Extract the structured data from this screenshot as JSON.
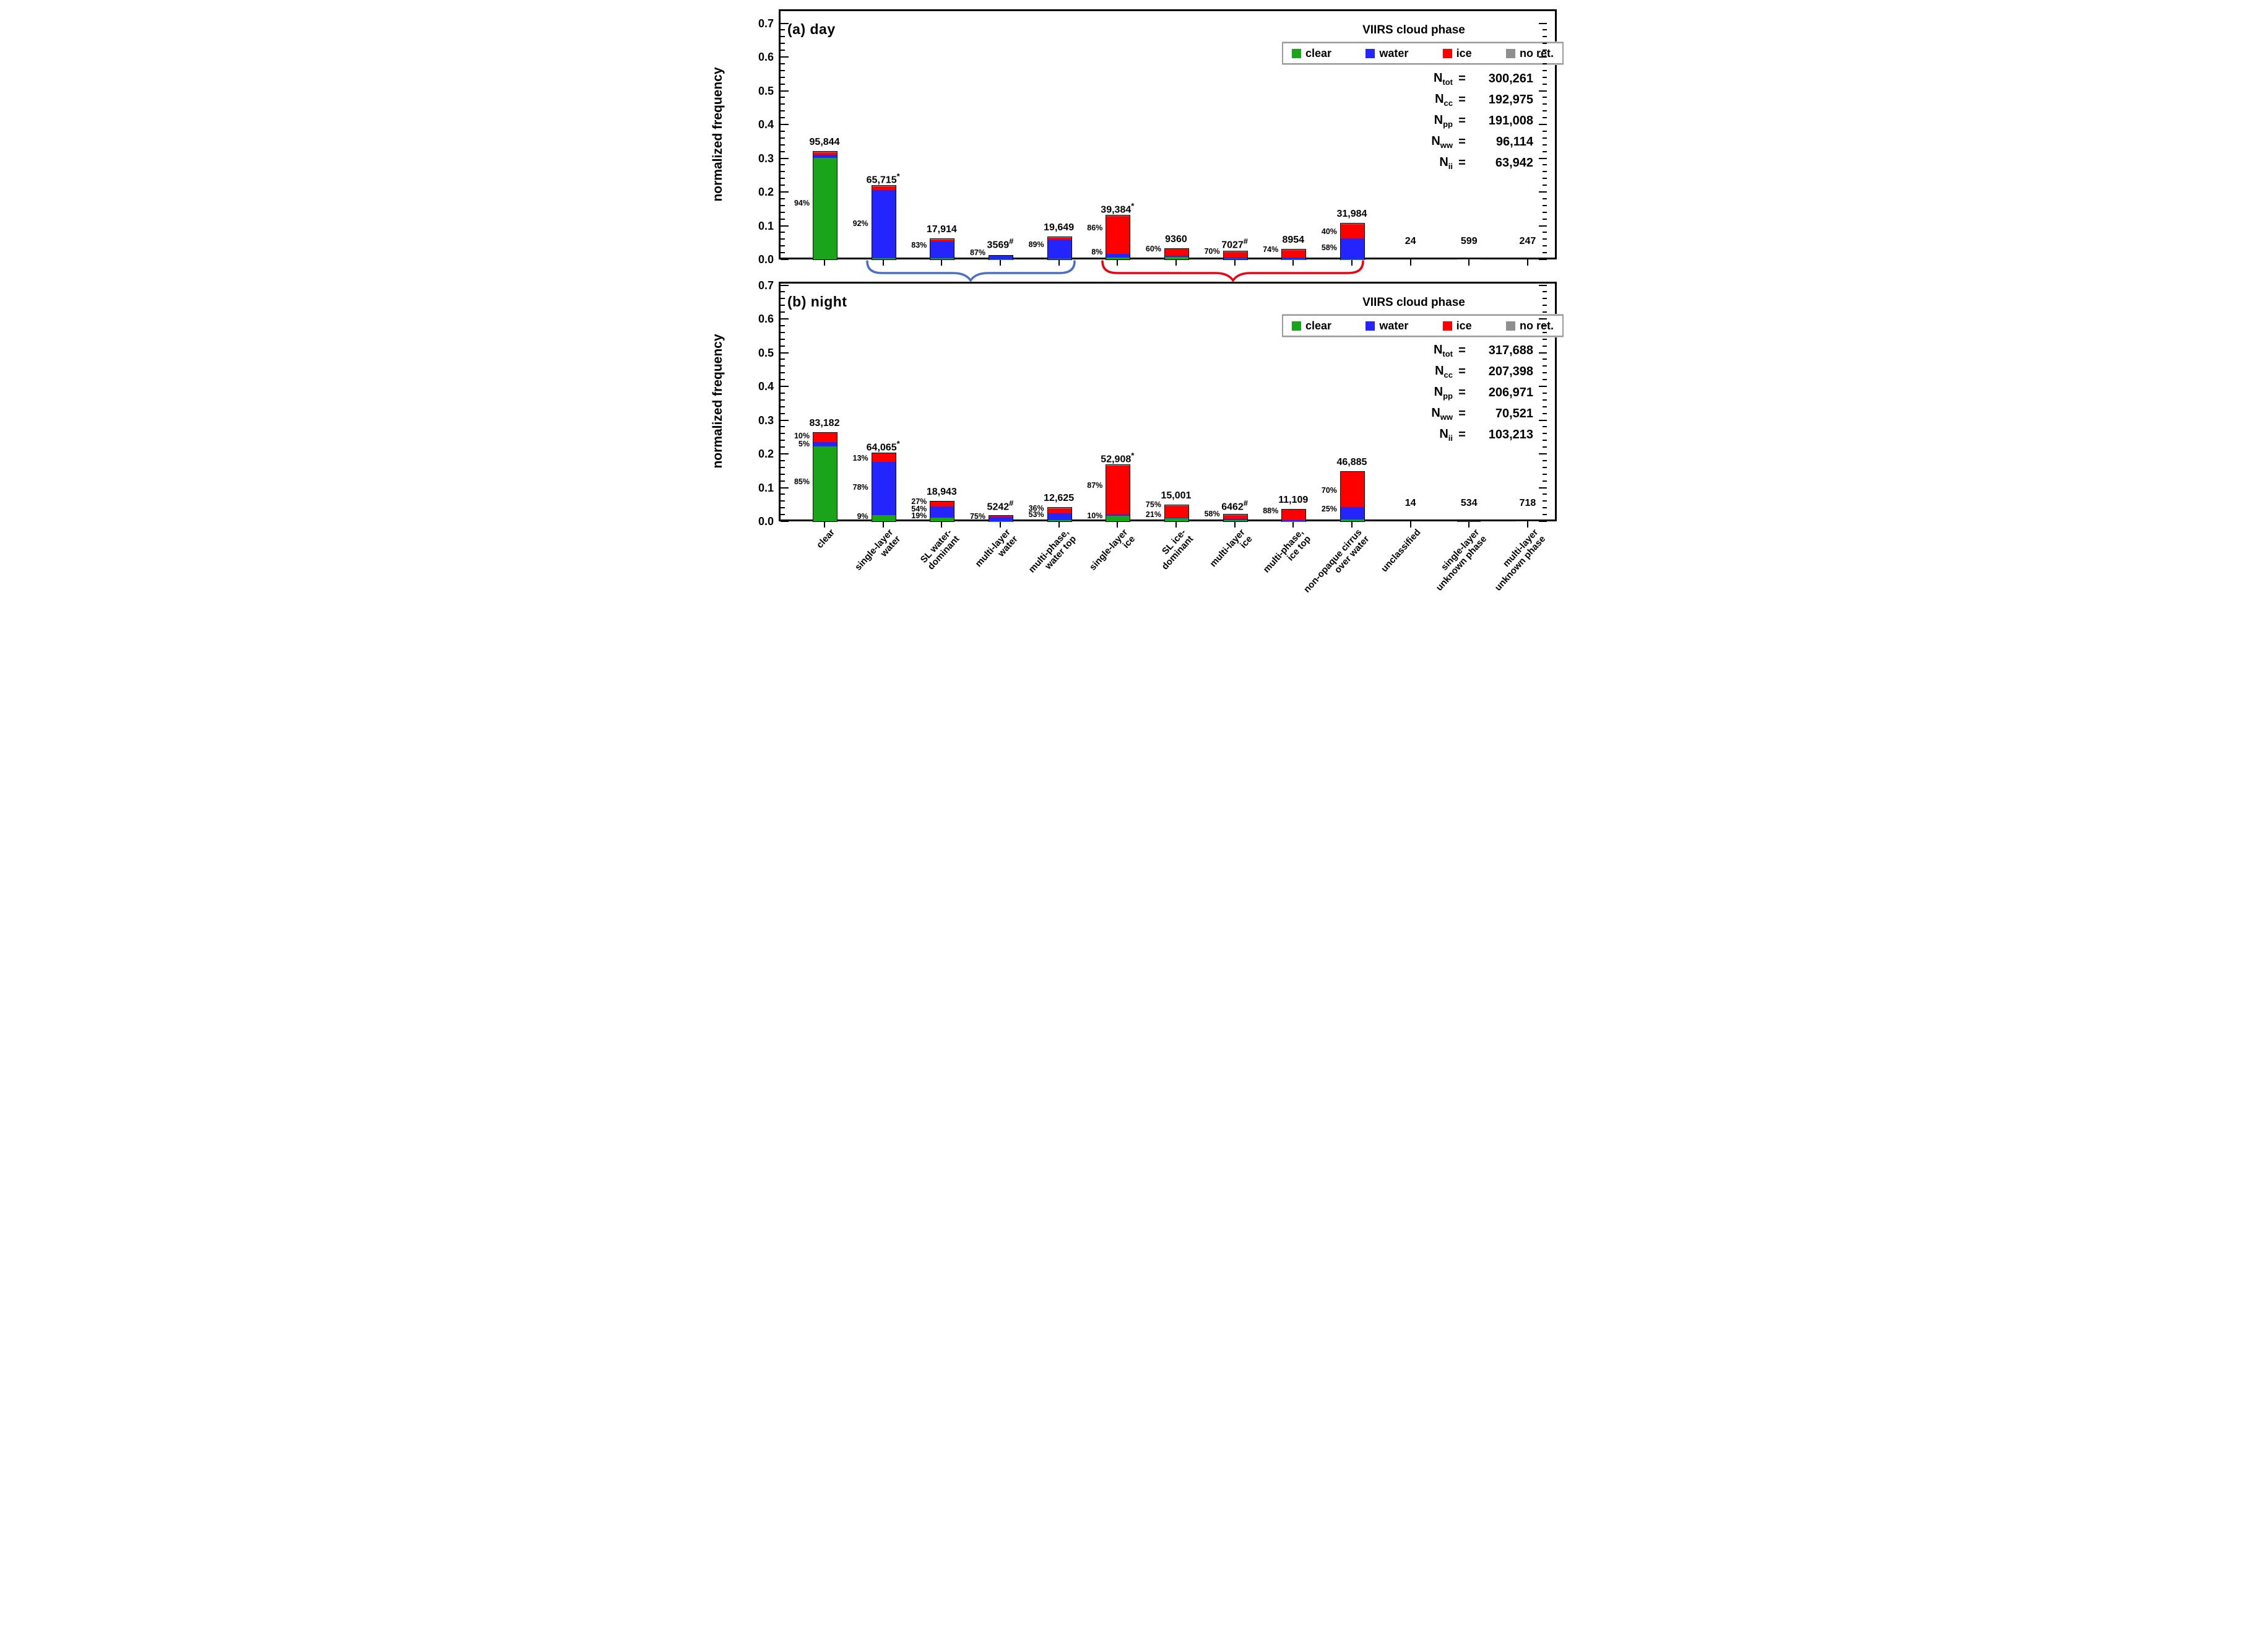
{
  "figure": {
    "y_axis_label": "normalized frequency",
    "y_tick_labels": [
      "0.0",
      "0.1",
      "0.2",
      "0.3",
      "0.4",
      "0.5",
      "0.6",
      "0.7"
    ],
    "colors": {
      "clear": "#1aa41a",
      "water": "#2424ff",
      "ice": "#ff0000",
      "no_ret": "#8f8f8f",
      "tiny_bar": "#333333",
      "brace_water": "#4a6fc8",
      "brace_ice": "#ee0011"
    },
    "legend": {
      "title": "VIIRS cloud phase",
      "entries": [
        {
          "key": "clear",
          "label": "clear"
        },
        {
          "key": "water",
          "label": "water"
        },
        {
          "key": "ice",
          "label": "ice"
        },
        {
          "key": "no_ret",
          "label": "no ret."
        }
      ]
    },
    "annotations": {
      "water_brace": {
        "color_key": "brace_water",
        "spans": "single-layer water through multi-phase, water top"
      },
      "ice_brace": {
        "color_key": "brace_ice",
        "spans": "single-layer ice through non-opaque cirrus over water"
      }
    }
  },
  "chart_data": [
    {
      "type": "bar",
      "stacked": true,
      "panel_label": "(a) day",
      "ylabel": "normalized frequency",
      "ylim": [
        0,
        0.7
      ],
      "ytick_step": 0.1,
      "yminor_step": 0.02,
      "grid": false,
      "legend_position": "top-right",
      "n_tot": 300261,
      "n_stats": [
        {
          "name": "N",
          "sub": "tot",
          "value": "300,261"
        },
        {
          "name": "N",
          "sub": "cc",
          "value": "192,975"
        },
        {
          "name": "N",
          "sub": "pp",
          "value": "191,008"
        },
        {
          "name": "N",
          "sub": "ww",
          "value": "96,114"
        },
        {
          "name": "N",
          "sub": "ii",
          "value": "63,942"
        }
      ],
      "categories": [
        {
          "label": "clear",
          "count": 95844,
          "count_label": "95,844",
          "suffix": "",
          "segments": {
            "clear": 0.94,
            "water": 0.03,
            "ice": 0.025,
            "no_ret": 0.005
          },
          "pct_labels": [
            {
              "text": "94%",
              "y": 0.165
            }
          ]
        },
        {
          "label": "single-layer\nwater",
          "count": 65715,
          "count_label": "65,715",
          "suffix": "*",
          "segments": {
            "clear": 0.015,
            "water": 0.92,
            "ice": 0.055,
            "no_ret": 0.01
          },
          "pct_labels": [
            {
              "text": "92%",
              "y": 0.105
            }
          ]
        },
        {
          "label": "SL water-\ndominant",
          "count": 17914,
          "count_label": "17,914",
          "suffix": "",
          "segments": {
            "clear": 0.06,
            "water": 0.83,
            "ice": 0.1,
            "no_ret": 0.01
          },
          "pct_labels": [
            {
              "text": "83%",
              "y": 0.04
            }
          ]
        },
        {
          "label": "multi-layer\nwater",
          "count": 3569,
          "count_label": "3569",
          "suffix": "#",
          "segments": {
            "clear": 0.02,
            "water": 0.87,
            "ice": 0.1,
            "no_ret": 0.01
          },
          "pct_labels": [
            {
              "text": "87%",
              "y": 0.018
            }
          ]
        },
        {
          "label": "multi-phase,\nwater top",
          "count": 19649,
          "count_label": "19,649",
          "suffix": "",
          "segments": {
            "clear": 0.02,
            "water": 0.89,
            "ice": 0.08,
            "no_ret": 0.01
          },
          "pct_labels": [
            {
              "text": "89%",
              "y": 0.042
            }
          ]
        },
        {
          "label": "single-layer\nice",
          "count": 39384,
          "count_label": "39,384",
          "suffix": "*",
          "segments": {
            "clear": 0.04,
            "water": 0.08,
            "ice": 0.86,
            "no_ret": 0.02
          },
          "pct_labels": [
            {
              "text": "86%",
              "y": 0.092
            },
            {
              "text": "8%",
              "y": 0.02
            }
          ]
        },
        {
          "label": "SL ice-\ndominant",
          "count": 9360,
          "count_label": "9360",
          "suffix": "",
          "segments": {
            "clear": 0.22,
            "water": 0.16,
            "ice": 0.6,
            "no_ret": 0.02
          },
          "pct_labels": [
            {
              "text": "60%",
              "y": 0.03
            }
          ]
        },
        {
          "label": "multi-layer\nice",
          "count": 7027,
          "count_label": "7027",
          "suffix": "#",
          "segments": {
            "clear": 0.1,
            "water": 0.12,
            "ice": 0.7,
            "no_ret": 0.08
          },
          "pct_labels": [
            {
              "text": "70%",
              "y": 0.022
            }
          ]
        },
        {
          "label": "multi-phase,\nice top",
          "count": 8954,
          "count_label": "8954",
          "suffix": "",
          "segments": {
            "clear": 0.02,
            "water": 0.19,
            "ice": 0.74,
            "no_ret": 0.05
          },
          "pct_labels": [
            {
              "text": "74%",
              "y": 0.028
            }
          ]
        },
        {
          "label": "non-opaque cirrus\nover water",
          "count": 31984,
          "count_label": "31,984",
          "suffix": "",
          "segments": {
            "clear": 0.005,
            "water": 0.58,
            "ice": 0.4,
            "no_ret": 0.015
          },
          "pct_labels": [
            {
              "text": "40%",
              "y": 0.08
            },
            {
              "text": "58%",
              "y": 0.033
            }
          ]
        },
        {
          "label": "unclassified",
          "count": 24,
          "count_label": "24",
          "suffix": "",
          "segments": {
            "clear": 0,
            "water": 0,
            "ice": 0,
            "no_ret": 1
          },
          "pct_labels": []
        },
        {
          "label": "single-layer\nunknown phase",
          "count": 599,
          "count_label": "599",
          "suffix": "",
          "segments": {
            "clear": 0,
            "water": 0,
            "ice": 0,
            "no_ret": 1
          },
          "pct_labels": []
        },
        {
          "label": "multi-layer\nunknown phase",
          "count": 247,
          "count_label": "247",
          "suffix": "",
          "segments": {
            "clear": 0,
            "water": 0,
            "ice": 0,
            "no_ret": 1
          },
          "pct_labels": []
        }
      ]
    },
    {
      "type": "bar",
      "stacked": true,
      "panel_label": "(b) night",
      "ylabel": "normalized frequency",
      "ylim": [
        0,
        0.7
      ],
      "ytick_step": 0.1,
      "yminor_step": 0.02,
      "grid": false,
      "legend_position": "top-right",
      "n_tot": 317688,
      "n_stats": [
        {
          "name": "N",
          "sub": "tot",
          "value": "317,688"
        },
        {
          "name": "N",
          "sub": "cc",
          "value": "207,398"
        },
        {
          "name": "N",
          "sub": "pp",
          "value": "206,971"
        },
        {
          "name": "N",
          "sub": "ww",
          "value": "70,521"
        },
        {
          "name": "N",
          "sub": "ii",
          "value": "103,213"
        }
      ],
      "categories": [
        {
          "label": "clear",
          "count": 83182,
          "count_label": "83,182",
          "suffix": "",
          "segments": {
            "clear": 0.85,
            "water": 0.05,
            "ice": 0.1,
            "no_ret": 0
          },
          "pct_labels": [
            {
              "text": "10%",
              "y": 0.252
            },
            {
              "text": "5%",
              "y": 0.228
            },
            {
              "text": "85%",
              "y": 0.115
            }
          ]
        },
        {
          "label": "single-layer\nwater",
          "count": 64065,
          "count_label": "64,065",
          "suffix": "*",
          "segments": {
            "clear": 0.09,
            "water": 0.78,
            "ice": 0.13,
            "no_ret": 0
          },
          "pct_labels": [
            {
              "text": "13%",
              "y": 0.185
            },
            {
              "text": "78%",
              "y": 0.1
            },
            {
              "text": "9%",
              "y": 0.012
            }
          ]
        },
        {
          "label": "SL water-\ndominant",
          "count": 18943,
          "count_label": "18,943",
          "suffix": "",
          "segments": {
            "clear": 0.19,
            "water": 0.54,
            "ice": 0.27,
            "no_ret": 0
          },
          "pct_labels": [
            {
              "text": "27%",
              "y": 0.056
            },
            {
              "text": "54%",
              "y": 0.035
            },
            {
              "text": "19%",
              "y": 0.014
            }
          ]
        },
        {
          "label": "multi-layer\nwater",
          "count": 5242,
          "count_label": "5242",
          "suffix": "#",
          "segments": {
            "clear": 0.04,
            "water": 0.75,
            "ice": 0.2,
            "no_ret": 0.01
          },
          "pct_labels": [
            {
              "text": "75%",
              "y": 0.013
            }
          ]
        },
        {
          "label": "multi-phase,\nwater top",
          "count": 12625,
          "count_label": "12,625",
          "suffix": "",
          "segments": {
            "clear": 0.08,
            "water": 0.53,
            "ice": 0.36,
            "no_ret": 0.03
          },
          "pct_labels": [
            {
              "text": "36%",
              "y": 0.036
            },
            {
              "text": "53%",
              "y": 0.019
            }
          ]
        },
        {
          "label": "single-layer\nice",
          "count": 52908,
          "count_label": "52,908",
          "suffix": "*",
          "segments": {
            "clear": 0.1,
            "water": 0.02,
            "ice": 0.87,
            "no_ret": 0.01
          },
          "pct_labels": [
            {
              "text": "87%",
              "y": 0.105
            },
            {
              "text": "10%",
              "y": 0.014
            }
          ]
        },
        {
          "label": "SL ice-\ndominant",
          "count": 15001,
          "count_label": "15,001",
          "suffix": "",
          "segments": {
            "clear": 0.21,
            "water": 0.02,
            "ice": 0.75,
            "no_ret": 0.02
          },
          "pct_labels": [
            {
              "text": "75%",
              "y": 0.047
            },
            {
              "text": "21%",
              "y": 0.018
            }
          ]
        },
        {
          "label": "multi-layer\nice",
          "count": 6462,
          "count_label": "6462",
          "suffix": "#",
          "segments": {
            "clear": 0.22,
            "water": 0.12,
            "ice": 0.58,
            "no_ret": 0.08
          },
          "pct_labels": [
            {
              "text": "58%",
              "y": 0.021
            }
          ]
        },
        {
          "label": "multi-phase,\nice top",
          "count": 11109,
          "count_label": "11,109",
          "suffix": "",
          "segments": {
            "clear": 0.02,
            "water": 0.08,
            "ice": 0.88,
            "no_ret": 0.02
          },
          "pct_labels": [
            {
              "text": "88%",
              "y": 0.03
            }
          ]
        },
        {
          "label": "non-opaque cirrus\nover water",
          "count": 46885,
          "count_label": "46,885",
          "suffix": "",
          "segments": {
            "clear": 0.04,
            "water": 0.25,
            "ice": 0.7,
            "no_ret": 0.01
          },
          "pct_labels": [
            {
              "text": "70%",
              "y": 0.09
            },
            {
              "text": "25%",
              "y": 0.035
            }
          ]
        },
        {
          "label": "unclassified",
          "count": 14,
          "count_label": "14",
          "suffix": "",
          "segments": {
            "clear": 0,
            "water": 0,
            "ice": 0,
            "no_ret": 1
          },
          "pct_labels": []
        },
        {
          "label": "single-layer\nunknown phase",
          "count": 534,
          "count_label": "534",
          "suffix": "",
          "segments": {
            "clear": 0,
            "water": 0,
            "ice": 0,
            "no_ret": 1
          },
          "pct_labels": []
        },
        {
          "label": "multi-layer\nunknown phase",
          "count": 718,
          "count_label": "718",
          "suffix": "",
          "segments": {
            "clear": 0,
            "water": 0,
            "ice": 0,
            "no_ret": 1
          },
          "pct_labels": []
        }
      ]
    }
  ]
}
